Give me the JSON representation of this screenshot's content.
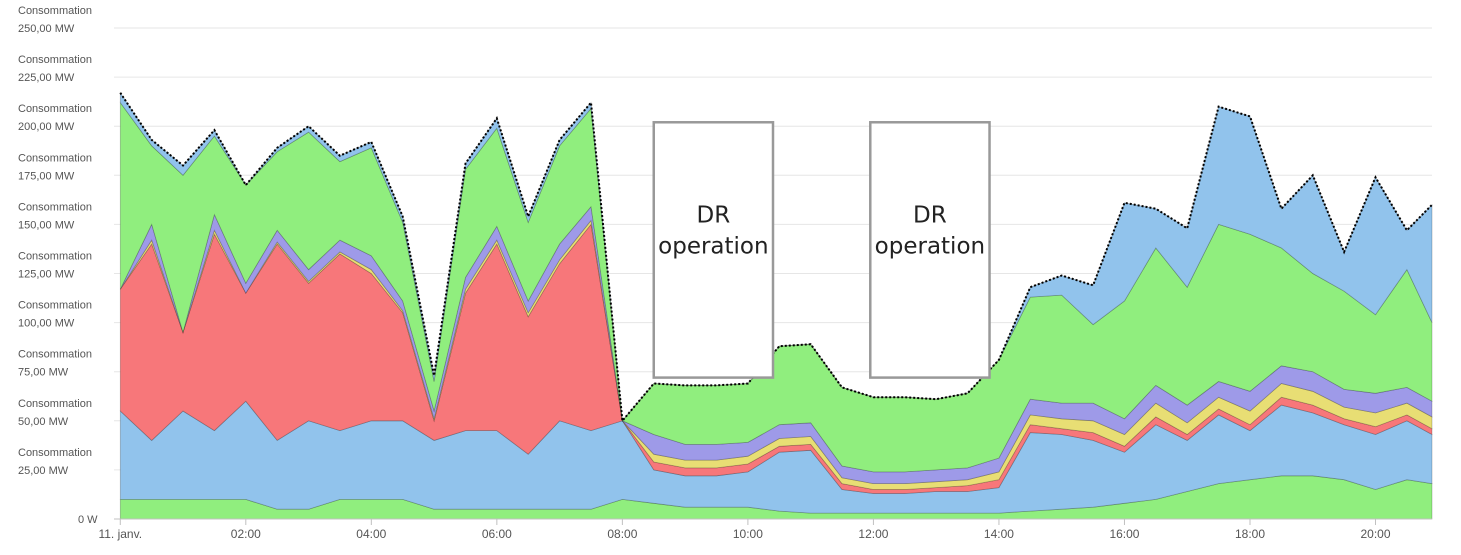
{
  "chart_data": {
    "type": "area",
    "stacked": true,
    "title": "",
    "xlabel": "",
    "ylabel": "",
    "x_start_label": "11. janv.",
    "ylim": [
      0,
      250
    ],
    "yticks": [
      {
        "value": 0,
        "label": "0 W"
      },
      {
        "value": 25,
        "label": "Consommation\n25,00 MW"
      },
      {
        "value": 50,
        "label": "Consommation\n50,00 MW"
      },
      {
        "value": 75,
        "label": "Consommation\n75,00 MW"
      },
      {
        "value": 100,
        "label": "Consommation\n100,00 MW"
      },
      {
        "value": 125,
        "label": "Consommation\n125,00 MW"
      },
      {
        "value": 150,
        "label": "Consommation\n150,00 MW"
      },
      {
        "value": 175,
        "label": "Consommation\n175,00 MW"
      },
      {
        "value": 200,
        "label": "Consommation\n200,00 MW"
      },
      {
        "value": 225,
        "label": "Consommation\n225,00 MW"
      },
      {
        "value": 250,
        "label": "Consommation\n250,00 MW"
      }
    ],
    "xticks": [
      {
        "hour": 0,
        "label": "11. janv."
      },
      {
        "hour": 2,
        "label": "02:00"
      },
      {
        "hour": 4,
        "label": "04:00"
      },
      {
        "hour": 6,
        "label": "06:00"
      },
      {
        "hour": 8,
        "label": "08:00"
      },
      {
        "hour": 10,
        "label": "10:00"
      },
      {
        "hour": 12,
        "label": "12:00"
      },
      {
        "hour": 14,
        "label": "14:00"
      },
      {
        "hour": 16,
        "label": "16:00"
      },
      {
        "hour": 18,
        "label": "18:00"
      },
      {
        "hour": 20,
        "label": "20:00"
      }
    ],
    "xlim_hours": [
      -0.1,
      20.9
    ],
    "x": [
      0,
      0.5,
      1,
      1.5,
      2,
      2.5,
      3,
      3.5,
      4,
      4.5,
      5,
      5.5,
      6,
      6.5,
      7,
      7.5,
      8,
      8.5,
      9,
      9.5,
      10,
      10.5,
      11,
      11.5,
      12,
      12.5,
      13,
      13.5,
      14,
      14.5,
      15,
      15.5,
      16,
      16.5,
      17,
      17.5,
      18,
      18.5,
      19,
      19.5,
      20,
      20.5,
      20.9
    ],
    "series": [
      {
        "color": "#90ee7e",
        "values": [
          10,
          10,
          10,
          10,
          10,
          5,
          5,
          10,
          10,
          10,
          5,
          5,
          5,
          5,
          5,
          5,
          10,
          8,
          6,
          6,
          6,
          4,
          3,
          3,
          3,
          3,
          3,
          3,
          3,
          4,
          5,
          6,
          8,
          10,
          14,
          18,
          20,
          22,
          22,
          20,
          15,
          20,
          18
        ]
      },
      {
        "color": "#91c3ec",
        "values": [
          45,
          30,
          45,
          35,
          50,
          35,
          45,
          35,
          40,
          40,
          35,
          40,
          40,
          28,
          45,
          40,
          40,
          17,
          16,
          16,
          18,
          30,
          32,
          12,
          10,
          10,
          11,
          11,
          13,
          40,
          38,
          34,
          26,
          38,
          26,
          35,
          25,
          36,
          32,
          28,
          28,
          30,
          25
        ]
      },
      {
        "color": "#f7777a",
        "values": [
          62,
          100,
          40,
          100,
          55,
          100,
          70,
          90,
          75,
          55,
          10,
          70,
          95,
          70,
          80,
          105,
          0,
          4,
          4,
          4,
          4,
          3,
          3,
          3,
          2,
          2,
          2,
          3,
          4,
          4,
          3,
          4,
          3,
          4,
          3,
          3,
          3,
          4,
          4,
          3,
          4,
          3,
          3
        ]
      },
      {
        "color": "#e8de74",
        "values": [
          0,
          2,
          0,
          2,
          0,
          1,
          1,
          1,
          2,
          1,
          1,
          2,
          2,
          2,
          2,
          2,
          0,
          4,
          4,
          4,
          4,
          4,
          4,
          3,
          3,
          3,
          3,
          3,
          4,
          5,
          5,
          6,
          6,
          7,
          6,
          6,
          7,
          7,
          7,
          6,
          7,
          6,
          6
        ]
      },
      {
        "color": "#9e9ae8",
        "values": [
          0,
          8,
          0,
          8,
          5,
          6,
          6,
          6,
          7,
          5,
          4,
          6,
          7,
          6,
          8,
          7,
          0,
          10,
          8,
          8,
          7,
          7,
          7,
          6,
          6,
          6,
          6,
          6,
          7,
          8,
          8,
          9,
          8,
          9,
          9,
          8,
          10,
          9,
          10,
          9,
          10,
          8,
          8
        ]
      },
      {
        "color": "#90ee7e",
        "values": [
          95,
          40,
          80,
          40,
          50,
          40,
          70,
          40,
          55,
          40,
          15,
          55,
          50,
          40,
          50,
          50,
          0,
          26,
          30,
          30,
          30,
          40,
          40,
          40,
          38,
          38,
          36,
          38,
          50,
          52,
          55,
          40,
          60,
          70,
          60,
          80,
          80,
          60,
          50,
          50,
          40,
          60,
          40
        ]
      },
      {
        "color": "#91c3ec",
        "values": [
          5,
          3,
          5,
          3,
          0,
          2,
          3,
          3,
          3,
          3,
          3,
          3,
          5,
          3,
          3,
          3,
          0,
          0,
          0,
          0,
          0,
          0,
          0,
          0,
          0,
          0,
          0,
          0,
          0,
          5,
          10,
          20,
          50,
          20,
          30,
          60,
          60,
          20,
          50,
          20,
          70,
          20,
          60
        ]
      }
    ],
    "total_line": {
      "style": "dotted",
      "color": "#000000"
    }
  },
  "annotations": [
    {
      "label_line1": "DR",
      "label_line2": "operation",
      "x_from_hour": 8.5,
      "x_to_hour": 10.4,
      "y_from": 72,
      "y_to": 202
    },
    {
      "label_line1": "DR",
      "label_line2": "operation",
      "x_from_hour": 11.95,
      "x_to_hour": 13.85,
      "y_from": 72,
      "y_to": 202
    }
  ]
}
